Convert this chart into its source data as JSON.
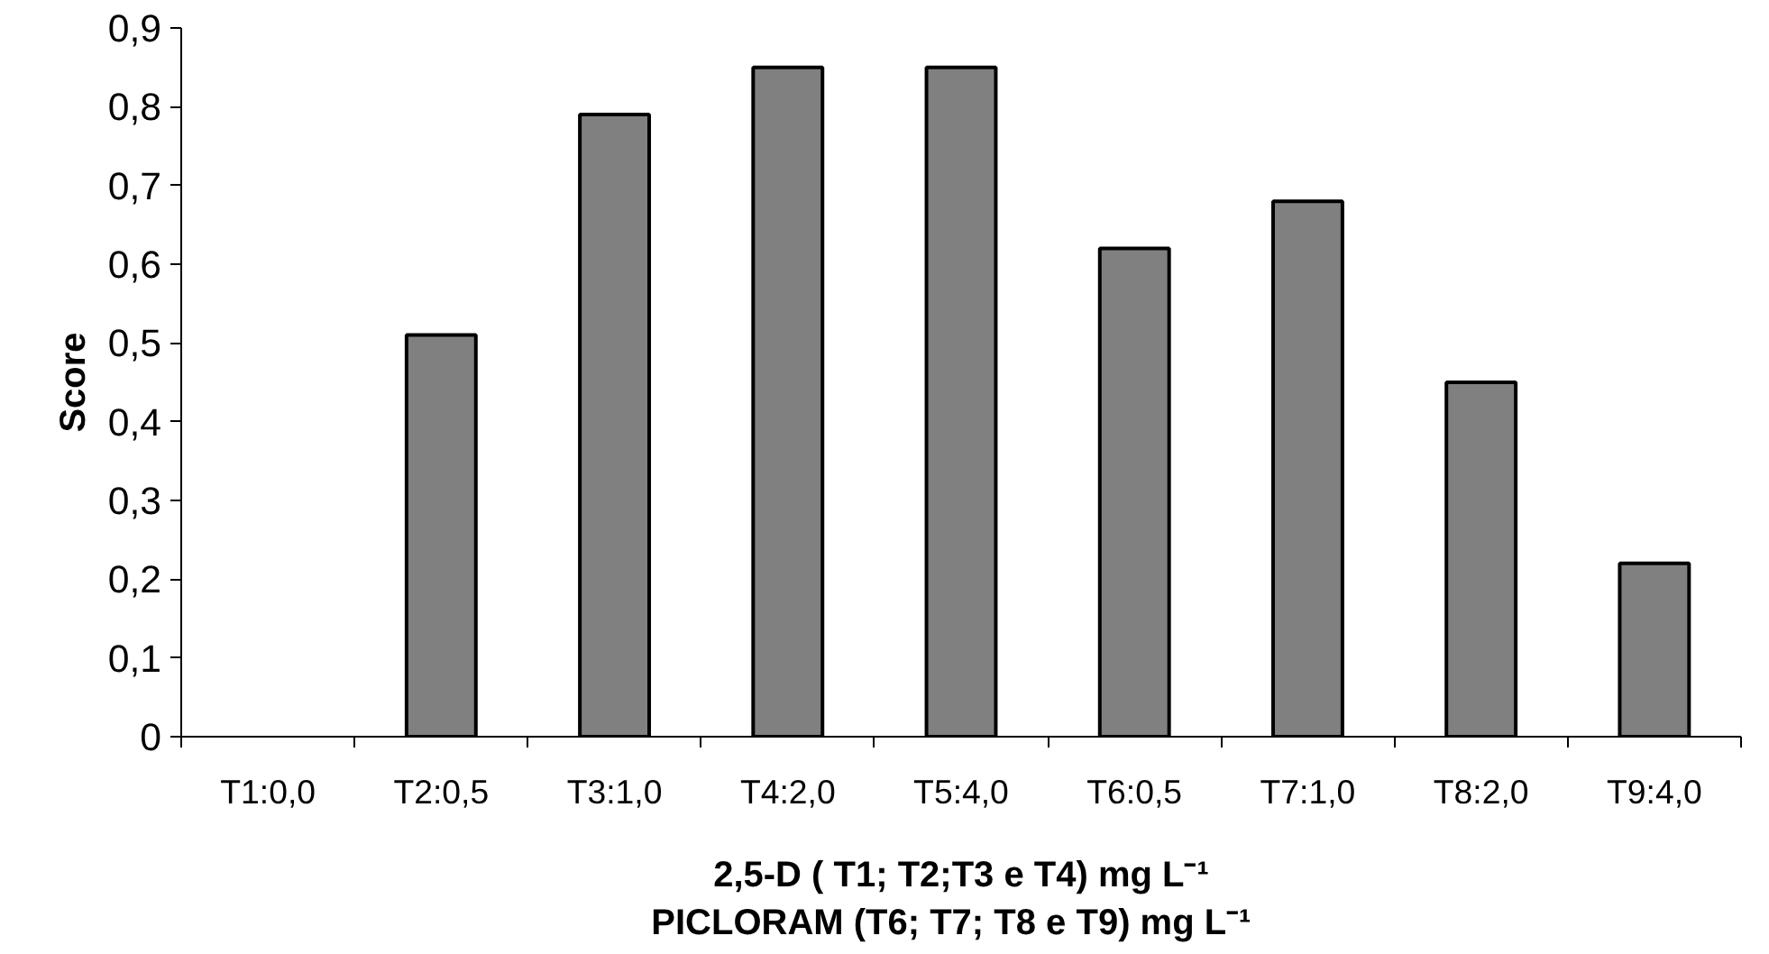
{
  "chart_data": {
    "type": "bar",
    "categories": [
      "T1:0,0",
      "T2:0,5",
      "T3:1,0",
      "T4:2,0",
      "T5:4,0",
      "T6:0,5",
      "T7:1,0",
      "T8:2,0",
      "T9:4,0"
    ],
    "values": [
      0,
      0.51,
      0.79,
      0.85,
      0.85,
      0.62,
      0.68,
      0.45,
      0.22
    ],
    "color": "#808080",
    "xlabel": "2,5-D ( T1; T2;T3 e T4) mg L⁻¹\nPICLORAM  (T6; T7; T8 e T9)  mg L⁻¹",
    "ylabel": "Score",
    "ylim": [
      0,
      0.9
    ],
    "yticks": [
      0,
      {
        "value": 0.1,
        "label": "0,1"
      },
      {
        "value": 0.2,
        "label": "0,2"
      },
      {
        "value": 0.3,
        "label": "0,3"
      },
      {
        "value": 0.4,
        "label": "0,4"
      },
      {
        "value": 0.5,
        "label": "0,5"
      },
      {
        "value": 0.6,
        "label": "0,6"
      },
      {
        "value": 0.7,
        "label": "0,7"
      },
      {
        "value": 0.8,
        "label": "0,8"
      },
      {
        "value": 0.9,
        "label": "0,9"
      }
    ],
    "grid": false
  }
}
